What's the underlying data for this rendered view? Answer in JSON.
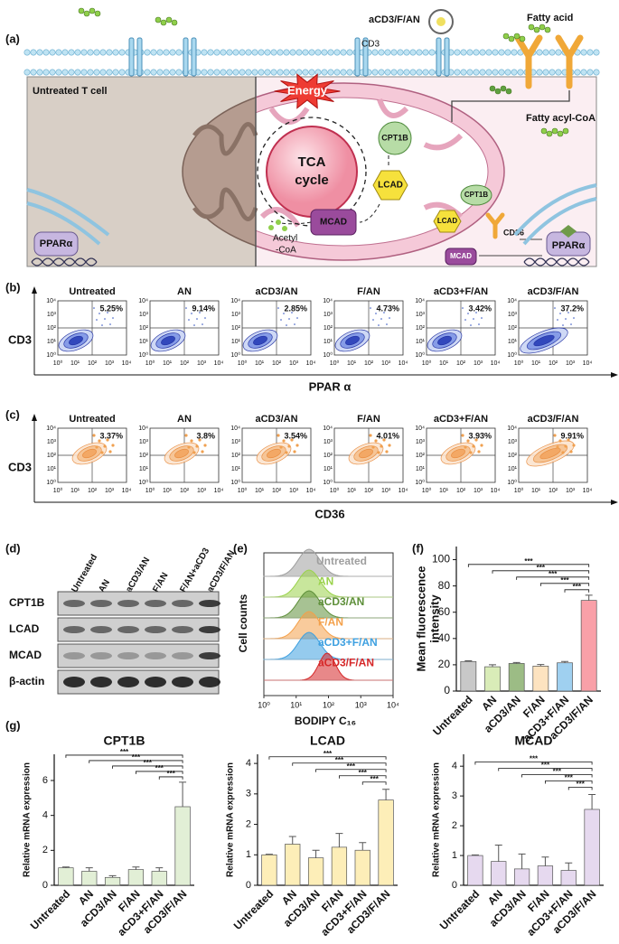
{
  "panel_a": {
    "label": "(a)",
    "nanoparticle": "aCD3/F/AN",
    "fatty_acid": "Fatty acid",
    "cd3": "CD3",
    "cell": "Untreated T cell",
    "energy": "Energy",
    "fatty_acyl_coa": "Fatty acyl-CoA",
    "tca": [
      "TCA",
      "cycle"
    ],
    "acetyl_coa": [
      "Acetyl",
      "-CoA"
    ],
    "mito_enzymes": [
      "CPT1B",
      "LCAD",
      "MCAD"
    ],
    "cytosol_enzymes": [
      "CPT1B",
      "LCAD",
      "MCAD"
    ],
    "cd36": "CD36",
    "ppar_left": "PPARα",
    "ppar_right": "PPARα"
  },
  "panel_b": {
    "label": "(b)",
    "y_label": "CD3",
    "x_label": "PPAR α",
    "axis_ticks": [
      "10⁰",
      "10¹",
      "10²",
      "10³",
      "10⁴"
    ],
    "plots": [
      {
        "title": "Untreated",
        "percent": "5.25%"
      },
      {
        "title": "AN",
        "percent": "9.14%"
      },
      {
        "title": "aCD3/AN",
        "percent": "2.85%"
      },
      {
        "title": "F/AN",
        "percent": "4.73%"
      },
      {
        "title": "aCD3+F/AN",
        "percent": "3.42%"
      },
      {
        "title": "aCD3/F/AN",
        "percent": "37.2%"
      }
    ]
  },
  "panel_c": {
    "label": "(c)",
    "y_label": "CD3",
    "x_label": "CD36",
    "axis_ticks": [
      "10⁰",
      "10¹",
      "10²",
      "10³",
      "10⁴"
    ],
    "plots": [
      {
        "title": "Untreated",
        "percent": "3.37%"
      },
      {
        "title": "AN",
        "percent": "3.8%"
      },
      {
        "title": "aCD3/AN",
        "percent": "3.54%"
      },
      {
        "title": "F/AN",
        "percent": "4.01%"
      },
      {
        "title": "aCD3+F/AN",
        "percent": "3.93%"
      },
      {
        "title": "aCD3/F/AN",
        "percent": "9.91%"
      }
    ]
  },
  "panel_d": {
    "label": "(d)",
    "lanes": [
      "Untreated",
      "AN",
      "aCD3/AN",
      "F/AN",
      "F/AN+aCD3",
      "aCD3/F/AN"
    ],
    "rows": [
      "CPT1B",
      "LCAD",
      "MCAD",
      "β-actin"
    ]
  },
  "panel_e": {
    "label": "(e)",
    "y_label": "Cell counts",
    "x_label": "BODIPY C₁₆",
    "x_ticks": [
      "10⁰",
      "10¹",
      "10²",
      "10³",
      "10⁴"
    ],
    "samples": [
      {
        "name": "Untreated",
        "color": "#9e9e9e"
      },
      {
        "name": "AN",
        "color": "#9ad24b"
      },
      {
        "name": "aCD3/AN",
        "color": "#5e8f3a"
      },
      {
        "name": "F/AN",
        "color": "#f4a04a"
      },
      {
        "name": "aCD3+F/AN",
        "color": "#3ea0e0"
      },
      {
        "name": "aCD3/F/AN",
        "color": "#d62728"
      }
    ]
  },
  "chart_data": [
    {
      "type": "bar",
      "panel_label": "(f)",
      "y_label": [
        "Mean fluorescence",
        "intensity"
      ],
      "categories": [
        "Untreated",
        "AN",
        "aCD3/AN",
        "F/AN",
        "aCD3+F/AN",
        "aCD3/F/AN"
      ],
      "values": [
        22.5,
        18.5,
        21,
        19,
        21.5,
        69
      ],
      "errors": [
        0.5,
        1.5,
        0.7,
        1.2,
        1,
        4
      ],
      "colors": [
        "#c8c8c8",
        "#d9ecb8",
        "#9cbc85",
        "#fde3c0",
        "#9fd0f0",
        "#f9a0a8"
      ],
      "ylim": [
        0,
        110
      ],
      "yticks": [
        0,
        20,
        40,
        60,
        80,
        100
      ],
      "significance": [
        "***",
        "***",
        "***",
        "***",
        "***"
      ]
    },
    {
      "type": "bar",
      "panel_label": "(g)",
      "title": "CPT1B",
      "y_label": "Relative mRNA expression",
      "categories": [
        "Untreated",
        "AN",
        "aCD3/AN",
        "F/AN",
        "aCD3+F/AN",
        "aCD3/F/AN"
      ],
      "values": [
        1,
        0.8,
        0.45,
        0.9,
        0.8,
        4.5
      ],
      "errors": [
        0.05,
        0.2,
        0.1,
        0.15,
        0.2,
        1.4
      ],
      "color": "#e2efd6",
      "ylim": [
        0,
        7.5
      ],
      "yticks": [
        0,
        2,
        4,
        6
      ],
      "significance": [
        "***",
        "***",
        "***",
        "***",
        "***"
      ]
    },
    {
      "type": "bar",
      "title": "LCAD",
      "y_label": "Relative mRNA expression",
      "categories": [
        "Untreated",
        "AN",
        "aCD3/AN",
        "F/AN",
        "aCD3+F/AN",
        "aCD3/F/AN"
      ],
      "values": [
        1,
        1.35,
        0.9,
        1.25,
        1.15,
        2.8
      ],
      "errors": [
        0.02,
        0.25,
        0.25,
        0.45,
        0.25,
        0.35
      ],
      "color": "#fdeeb8",
      "ylim": [
        0,
        4.3
      ],
      "yticks": [
        0,
        1,
        2,
        3,
        4
      ],
      "significance": [
        "***",
        "***",
        "***",
        "***",
        "***"
      ]
    },
    {
      "type": "bar",
      "title": "MCAD",
      "y_label": "Relative mRNA expression",
      "categories": [
        "Untreated",
        "AN",
        "aCD3/AN",
        "F/AN",
        "aCD3+F/AN",
        "aCD3/F/AN"
      ],
      "values": [
        1,
        0.8,
        0.55,
        0.65,
        0.5,
        2.55
      ],
      "errors": [
        0.02,
        0.55,
        0.5,
        0.3,
        0.25,
        0.5
      ],
      "color": "#e6d9ef",
      "ylim": [
        0,
        4.4
      ],
      "yticks": [
        0,
        1,
        2,
        3,
        4
      ],
      "significance": [
        "***",
        "***",
        "***",
        "***",
        "***"
      ]
    }
  ]
}
